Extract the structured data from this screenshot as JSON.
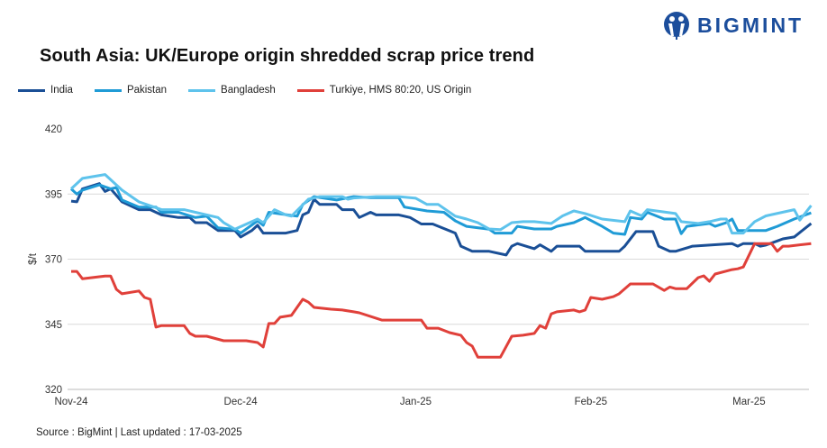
{
  "brand": {
    "name": "BIGMINT",
    "color": "#1c4e9c"
  },
  "source": "Source : BigMint | Last updated : 17-03-2025",
  "chart_data": {
    "type": "line",
    "title": "South Asia: UK/Europe origin shredded scrap price trend",
    "ylabel": "$/t",
    "xlabel": "",
    "ylim": [
      320,
      420
    ],
    "yticks": [
      420,
      395,
      370,
      345,
      320
    ],
    "xticks": [
      {
        "date": "2024-11-01",
        "label": "Nov-24"
      },
      {
        "date": "2024-12-01",
        "label": "Dec-24"
      },
      {
        "date": "2025-01-01",
        "label": "Jan-25"
      },
      {
        "date": "2025-02-01",
        "label": "Feb-25"
      },
      {
        "date": "2025-03-01",
        "label": "Mar-25"
      }
    ],
    "grid": true,
    "legend_position": "top-left",
    "series": [
      {
        "name": "India",
        "color": "#1a4f96",
        "points": [
          [
            "2024-11-01",
            392.3
          ],
          [
            "2024-11-02",
            392
          ],
          [
            "2024-11-03",
            397
          ],
          [
            "2024-11-06",
            399
          ],
          [
            "2024-11-07",
            396
          ],
          [
            "2024-11-08",
            397
          ],
          [
            "2024-11-10",
            392
          ],
          [
            "2024-11-13",
            389
          ],
          [
            "2024-11-15",
            389
          ],
          [
            "2024-11-17",
            387
          ],
          [
            "2024-11-20",
            386
          ],
          [
            "2024-11-22",
            386
          ],
          [
            "2024-11-23",
            384
          ],
          [
            "2024-11-25",
            384
          ],
          [
            "2024-11-27",
            381
          ],
          [
            "2024-11-30",
            381
          ],
          [
            "2024-12-01",
            378.5
          ],
          [
            "2024-12-03",
            381
          ],
          [
            "2024-12-04",
            383
          ],
          [
            "2024-12-05",
            380
          ],
          [
            "2024-12-09",
            380
          ],
          [
            "2024-12-11",
            381
          ],
          [
            "2024-12-12",
            387
          ],
          [
            "2024-12-13",
            388
          ],
          [
            "2024-12-14",
            393
          ],
          [
            "2024-12-15",
            391
          ],
          [
            "2024-12-18",
            391
          ],
          [
            "2024-12-19",
            389
          ],
          [
            "2024-12-21",
            389
          ],
          [
            "2024-12-22",
            386
          ],
          [
            "2024-12-24",
            388
          ],
          [
            "2024-12-25",
            387
          ],
          [
            "2024-12-29",
            387
          ],
          [
            "2024-12-31",
            386
          ],
          [
            "2025-01-02",
            383.5
          ],
          [
            "2025-01-04",
            383.5
          ],
          [
            "2025-01-08",
            380
          ],
          [
            "2025-01-09",
            375
          ],
          [
            "2025-01-11",
            373
          ],
          [
            "2025-01-14",
            373
          ],
          [
            "2025-01-17",
            371.6
          ],
          [
            "2025-01-18",
            375
          ],
          [
            "2025-01-19",
            376
          ],
          [
            "2025-01-22",
            374
          ],
          [
            "2025-01-23",
            375.5
          ],
          [
            "2025-01-25",
            373
          ],
          [
            "2025-01-26",
            375
          ],
          [
            "2025-01-30",
            375
          ],
          [
            "2025-01-31",
            373
          ],
          [
            "2025-02-06",
            373
          ],
          [
            "2025-02-07",
            375
          ],
          [
            "2025-02-09",
            380.6
          ],
          [
            "2025-02-12",
            380.6
          ],
          [
            "2025-02-13",
            375
          ],
          [
            "2025-02-15",
            373
          ],
          [
            "2025-02-16",
            373
          ],
          [
            "2025-02-19",
            375
          ],
          [
            "2025-02-26",
            376
          ],
          [
            "2025-02-27",
            375
          ],
          [
            "2025-02-28",
            376
          ],
          [
            "2025-03-02",
            376
          ],
          [
            "2025-03-03",
            375
          ],
          [
            "2025-03-04",
            375.4
          ],
          [
            "2025-03-06",
            377
          ],
          [
            "2025-03-07",
            377.8
          ],
          [
            "2025-03-09",
            378.5
          ],
          [
            "2025-03-12",
            383.7
          ]
        ]
      },
      {
        "name": "Pakistan",
        "color": "#1f9bd6",
        "points": [
          [
            "2024-11-01",
            397
          ],
          [
            "2024-11-02",
            395
          ],
          [
            "2024-11-03",
            396.5
          ],
          [
            "2024-11-06",
            398.5
          ],
          [
            "2024-11-08",
            397
          ],
          [
            "2024-11-09",
            397.5
          ],
          [
            "2024-11-10",
            392.7
          ],
          [
            "2024-11-13",
            390
          ],
          [
            "2024-11-16",
            390
          ],
          [
            "2024-11-17",
            388
          ],
          [
            "2024-11-20",
            388
          ],
          [
            "2024-11-23",
            386
          ],
          [
            "2024-11-25",
            386.5
          ],
          [
            "2024-11-27",
            382
          ],
          [
            "2024-11-30",
            381.5
          ],
          [
            "2024-12-01",
            380
          ],
          [
            "2024-12-04",
            384.7
          ],
          [
            "2024-12-05",
            383
          ],
          [
            "2024-12-06",
            388
          ],
          [
            "2024-12-11",
            386.5
          ],
          [
            "2024-12-12",
            391
          ],
          [
            "2024-12-14",
            394
          ],
          [
            "2024-12-18",
            392.7
          ],
          [
            "2024-12-21",
            394
          ],
          [
            "2024-12-24",
            393.6
          ],
          [
            "2024-12-29",
            393.6
          ],
          [
            "2024-12-30",
            390
          ],
          [
            "2025-01-03",
            388.5
          ],
          [
            "2025-01-06",
            388
          ],
          [
            "2025-01-08",
            384.7
          ],
          [
            "2025-01-10",
            382.6
          ],
          [
            "2025-01-14",
            381.5
          ],
          [
            "2025-01-15",
            380
          ],
          [
            "2025-01-18",
            380
          ],
          [
            "2025-01-19",
            382.6
          ],
          [
            "2025-01-22",
            381.6
          ],
          [
            "2025-01-25",
            381.6
          ],
          [
            "2025-01-26",
            382.6
          ],
          [
            "2025-01-29",
            384
          ],
          [
            "2025-01-31",
            386
          ],
          [
            "2025-02-03",
            382.6
          ],
          [
            "2025-02-05",
            380
          ],
          [
            "2025-02-07",
            379.5
          ],
          [
            "2025-02-08",
            386
          ],
          [
            "2025-02-10",
            385.4
          ],
          [
            "2025-02-11",
            388
          ],
          [
            "2025-02-14",
            385.4
          ],
          [
            "2025-02-16",
            385.4
          ],
          [
            "2025-02-17",
            379.8
          ],
          [
            "2025-02-18",
            382.6
          ],
          [
            "2025-02-22",
            383.7
          ],
          [
            "2025-02-23",
            382.6
          ],
          [
            "2025-02-25",
            384
          ],
          [
            "2025-02-26",
            385.4
          ],
          [
            "2025-02-27",
            381
          ],
          [
            "2025-03-04",
            381
          ],
          [
            "2025-03-06",
            382.6
          ],
          [
            "2025-03-09",
            385.4
          ],
          [
            "2025-03-12",
            387.8
          ]
        ]
      },
      {
        "name": "Bangladesh",
        "color": "#5ec3ec",
        "points": [
          [
            "2024-11-01",
            397
          ],
          [
            "2024-11-03",
            401
          ],
          [
            "2024-11-07",
            402.5
          ],
          [
            "2024-11-10",
            396.5
          ],
          [
            "2024-11-13",
            392
          ],
          [
            "2024-11-17",
            389
          ],
          [
            "2024-11-21",
            389
          ],
          [
            "2024-11-23",
            388
          ],
          [
            "2024-11-27",
            386
          ],
          [
            "2024-11-28",
            384
          ],
          [
            "2024-11-30",
            381.5
          ],
          [
            "2024-12-04",
            385.4
          ],
          [
            "2024-12-05",
            384
          ],
          [
            "2024-12-07",
            389
          ],
          [
            "2024-12-09",
            387
          ],
          [
            "2024-12-10",
            386.5
          ],
          [
            "2024-12-13",
            393
          ],
          [
            "2024-12-15",
            394
          ],
          [
            "2024-12-19",
            394
          ],
          [
            "2024-12-20",
            393
          ],
          [
            "2024-12-21",
            393.5
          ],
          [
            "2024-12-25",
            394
          ],
          [
            "2024-12-29",
            394
          ],
          [
            "2025-01-01",
            393.4
          ],
          [
            "2025-01-03",
            391
          ],
          [
            "2025-01-05",
            391
          ],
          [
            "2025-01-08",
            386.5
          ],
          [
            "2025-01-10",
            385.4
          ],
          [
            "2025-01-12",
            384
          ],
          [
            "2025-01-14",
            381.6
          ],
          [
            "2025-01-16",
            381.3
          ],
          [
            "2025-01-18",
            384
          ],
          [
            "2025-01-20",
            384.4
          ],
          [
            "2025-01-22",
            384.4
          ],
          [
            "2025-01-25",
            383.7
          ],
          [
            "2025-01-27",
            386.6
          ],
          [
            "2025-01-29",
            388.5
          ],
          [
            "2025-01-31",
            387.5
          ],
          [
            "2025-02-03",
            385.4
          ],
          [
            "2025-02-07",
            384.4
          ],
          [
            "2025-02-08",
            388.5
          ],
          [
            "2025-02-10",
            386.6
          ],
          [
            "2025-02-11",
            389
          ],
          [
            "2025-02-16",
            387.5
          ],
          [
            "2025-02-17",
            384.4
          ],
          [
            "2025-02-20",
            383.7
          ],
          [
            "2025-02-22",
            384.4
          ],
          [
            "2025-02-24",
            385.4
          ],
          [
            "2025-02-25",
            385.4
          ],
          [
            "2025-02-26",
            380
          ],
          [
            "2025-02-28",
            380
          ],
          [
            "2025-03-02",
            384.4
          ],
          [
            "2025-03-04",
            386.6
          ],
          [
            "2025-03-09",
            389
          ],
          [
            "2025-03-10",
            385
          ],
          [
            "2025-03-12",
            390.6
          ]
        ]
      },
      {
        "name": "Turkiye, HMS 80:20, US Origin",
        "color": "#e0403a",
        "points": [
          [
            "2024-11-01",
            365.3
          ],
          [
            "2024-11-02",
            365.3
          ],
          [
            "2024-11-03",
            362.5
          ],
          [
            "2024-11-07",
            363.5
          ],
          [
            "2024-11-08",
            363.5
          ],
          [
            "2024-11-09",
            358.4
          ],
          [
            "2024-11-10",
            356.7
          ],
          [
            "2024-11-13",
            357.8
          ],
          [
            "2024-11-14",
            355.3
          ],
          [
            "2024-11-15",
            354.6
          ],
          [
            "2024-11-16",
            343.9
          ],
          [
            "2024-11-17",
            344.5
          ],
          [
            "2024-11-21",
            344.5
          ],
          [
            "2024-11-22",
            341.5
          ],
          [
            "2024-11-23",
            340.4
          ],
          [
            "2024-11-25",
            340.4
          ],
          [
            "2024-11-28",
            338.7
          ],
          [
            "2024-12-02",
            338.7
          ],
          [
            "2024-12-04",
            338
          ],
          [
            "2024-12-05",
            336.3
          ],
          [
            "2024-12-06",
            345.3
          ],
          [
            "2024-12-07",
            345.3
          ],
          [
            "2024-12-08",
            347.7
          ],
          [
            "2024-12-10",
            348.4
          ],
          [
            "2024-12-12",
            354.6
          ],
          [
            "2024-12-13",
            353.5
          ],
          [
            "2024-12-14",
            351.5
          ],
          [
            "2024-12-17",
            350.8
          ],
          [
            "2024-12-19",
            350.5
          ],
          [
            "2024-12-21",
            349.8
          ],
          [
            "2024-12-22",
            349.4
          ],
          [
            "2024-12-26",
            346.6
          ],
          [
            "2025-01-02",
            346.6
          ],
          [
            "2025-01-03",
            343.5
          ],
          [
            "2025-01-05",
            343.5
          ],
          [
            "2025-01-07",
            341.8
          ],
          [
            "2025-01-09",
            340.8
          ],
          [
            "2025-01-10",
            338
          ],
          [
            "2025-01-11",
            336.6
          ],
          [
            "2025-01-12",
            332.4
          ],
          [
            "2025-01-16",
            332.4
          ],
          [
            "2025-01-18",
            340.4
          ],
          [
            "2025-01-20",
            340.8
          ],
          [
            "2025-01-22",
            341.5
          ],
          [
            "2025-01-23",
            344.5
          ],
          [
            "2025-01-24",
            343.5
          ],
          [
            "2025-01-25",
            349
          ],
          [
            "2025-01-26",
            349.8
          ],
          [
            "2025-01-29",
            350.5
          ],
          [
            "2025-01-30",
            349.8
          ],
          [
            "2025-01-31",
            350.5
          ],
          [
            "2025-02-01",
            355.3
          ],
          [
            "2025-02-03",
            354.6
          ],
          [
            "2025-02-05",
            355.6
          ],
          [
            "2025-02-06",
            356.7
          ],
          [
            "2025-02-08",
            360.5
          ],
          [
            "2025-02-12",
            360.5
          ],
          [
            "2025-02-14",
            358
          ],
          [
            "2025-02-15",
            359.3
          ],
          [
            "2025-02-16",
            358.7
          ],
          [
            "2025-02-18",
            358.7
          ],
          [
            "2025-02-20",
            362.9
          ],
          [
            "2025-02-21",
            363.6
          ],
          [
            "2025-02-22",
            361.5
          ],
          [
            "2025-02-23",
            364.3
          ],
          [
            "2025-02-26",
            366
          ],
          [
            "2025-02-27",
            366.3
          ],
          [
            "2025-02-28",
            367
          ],
          [
            "2025-03-02",
            376
          ],
          [
            "2025-03-05",
            376
          ],
          [
            "2025-03-06",
            373
          ],
          [
            "2025-03-07",
            375
          ],
          [
            "2025-03-08",
            375
          ],
          [
            "2025-03-12",
            376
          ]
        ]
      }
    ]
  }
}
